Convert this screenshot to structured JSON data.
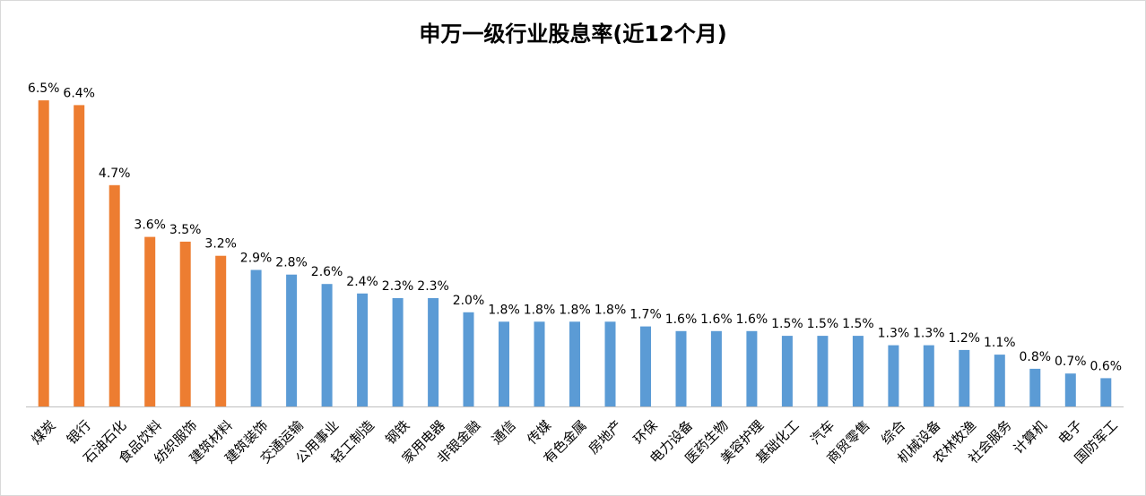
{
  "chart_data": {
    "type": "bar",
    "title": "申万一级行业股息率(近12个月)",
    "xlabel": "",
    "ylabel": "",
    "grid": false,
    "legend": "none",
    "ylim": [
      0,
      7
    ],
    "highlight_color": "#ED7D31",
    "base_color": "#5B9BD5",
    "categories": [
      "煤炭",
      "银行",
      "石油石化",
      "食品饮料",
      "纺织服饰",
      "建筑材料",
      "建筑装饰",
      "交通运输",
      "公用事业",
      "轻工制造",
      "钢铁",
      "家用电器",
      "非银金融",
      "通信",
      "传媒",
      "有色金属",
      "房地产",
      "环保",
      "电力设备",
      "医药生物",
      "美容护理",
      "基础化工",
      "汽车",
      "商贸零售",
      "综合",
      "机械设备",
      "农林牧渔",
      "社会服务",
      "计算机",
      "电子",
      "国防军工"
    ],
    "values": [
      6.5,
      6.4,
      4.7,
      3.6,
      3.5,
      3.2,
      2.9,
      2.8,
      2.6,
      2.4,
      2.3,
      2.3,
      2.0,
      1.8,
      1.8,
      1.8,
      1.8,
      1.7,
      1.6,
      1.6,
      1.6,
      1.5,
      1.5,
      1.5,
      1.3,
      1.3,
      1.2,
      1.1,
      0.8,
      0.7,
      0.6
    ],
    "value_labels": [
      "6.5%",
      "6.4%",
      "4.7%",
      "3.6%",
      "3.5%",
      "3.2%",
      "2.9%",
      "2.8%",
      "2.6%",
      "2.4%",
      "2.3%",
      "2.3%",
      "2.0%",
      "1.8%",
      "1.8%",
      "1.8%",
      "1.8%",
      "1.7%",
      "1.6%",
      "1.6%",
      "1.6%",
      "1.5%",
      "1.5%",
      "1.5%",
      "1.3%",
      "1.3%",
      "1.2%",
      "1.1%",
      "0.8%",
      "0.7%",
      "0.6%"
    ],
    "highlighted_count": 6
  }
}
